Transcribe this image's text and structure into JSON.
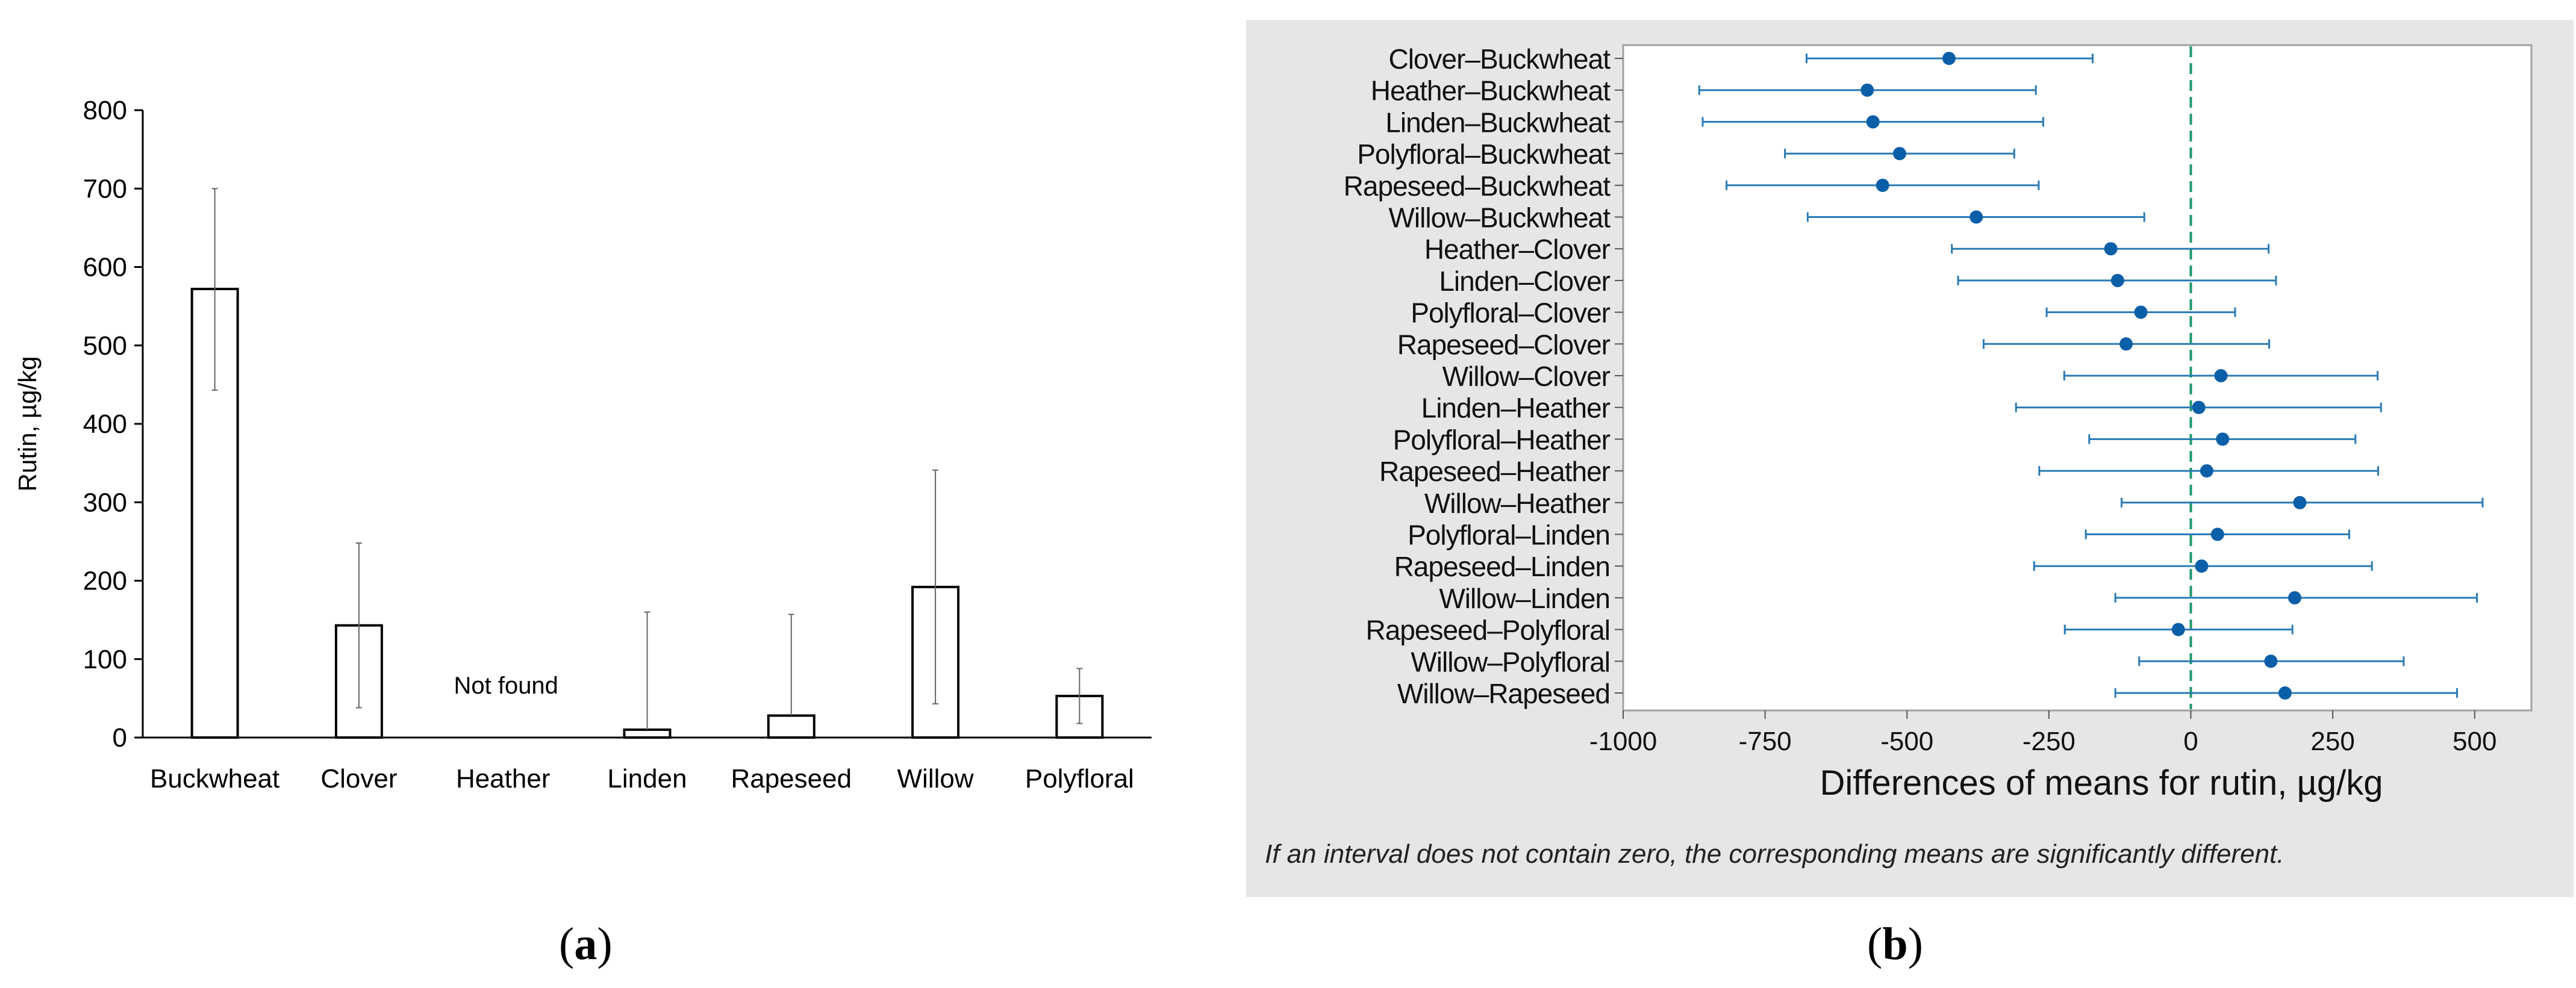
{
  "chart_data": [
    {
      "type": "bar",
      "categories": [
        "Buckwheat",
        "Clover",
        "Heather",
        "Linden",
        "Rapeseed",
        "Willow",
        "Polyfloral"
      ],
      "values": [
        572,
        143,
        0,
        10,
        28,
        192,
        53
      ],
      "error_low": [
        443,
        38,
        null,
        null,
        null,
        43,
        18
      ],
      "error_high": [
        700,
        248,
        null,
        160,
        157,
        341,
        88
      ],
      "annotations": [
        {
          "category": "Heather",
          "text": "Not found"
        }
      ],
      "ylabel": "Rutin, µg/kg",
      "ylim": [
        0,
        800
      ],
      "yticks": [
        0,
        100,
        200,
        300,
        400,
        500,
        600,
        700,
        800
      ],
      "grid": false,
      "panel_label": {
        "open": "(",
        "letter": "a",
        "close": ")"
      }
    },
    {
      "type": "scatter",
      "subtype": "interval-plot",
      "categories": [
        "Clover–Buckwheat",
        "Heather–Buckwheat",
        "Linden–Buckwheat",
        "Polyfloral–Buckwheat",
        "Rapeseed–Buckwheat",
        "Willow–Buckwheat",
        "Heather–Clover",
        "Linden–Clover",
        "Polyfloral–Clover",
        "Rapeseed–Clover",
        "Willow–Clover",
        "Linden–Heather",
        "Polyfloral–Heather",
        "Rapeseed–Heather",
        "Willow–Heather",
        "Polyfloral–Linden",
        "Rapeseed–Linden",
        "Willow–Linden",
        "Rapeseed–Polyfloral",
        "Willow–Polyfloral",
        "Willow–Rapeseed"
      ],
      "means": [
        -426,
        -570,
        -560,
        -513,
        -543,
        -378,
        -141,
        -129,
        -88,
        -114,
        53,
        14,
        56,
        28,
        192,
        47,
        19,
        183,
        -22,
        141,
        166
      ],
      "lower": [
        -677,
        -866,
        -860,
        -715,
        -818,
        -675,
        -421,
        -410,
        -254,
        -365,
        -223,
        -308,
        -179,
        -267,
        -122,
        -185,
        -276,
        -133,
        -222,
        -91,
        -133
      ],
      "upper": [
        -173,
        -273,
        -260,
        -311,
        -268,
        -82,
        137,
        150,
        78,
        138,
        329,
        335,
        290,
        330,
        514,
        279,
        319,
        504,
        179,
        375,
        469
      ],
      "reference_line": 0,
      "xlabel": "Differences of means for rutin, µg/kg",
      "xlim": [
        -1000,
        600
      ],
      "xticks": [
        -1000,
        -750,
        -500,
        -250,
        0,
        250,
        500
      ],
      "footnote": "If an interval does not contain zero, the corresponding means are significantly different.",
      "colors": {
        "interval": "#2a7ab5",
        "mean": "#0b5ea8",
        "reference": "#1a9a68",
        "background": "#e6e6e6"
      },
      "panel_label": {
        "open": "(",
        "letter": "b",
        "close": ")"
      }
    }
  ]
}
